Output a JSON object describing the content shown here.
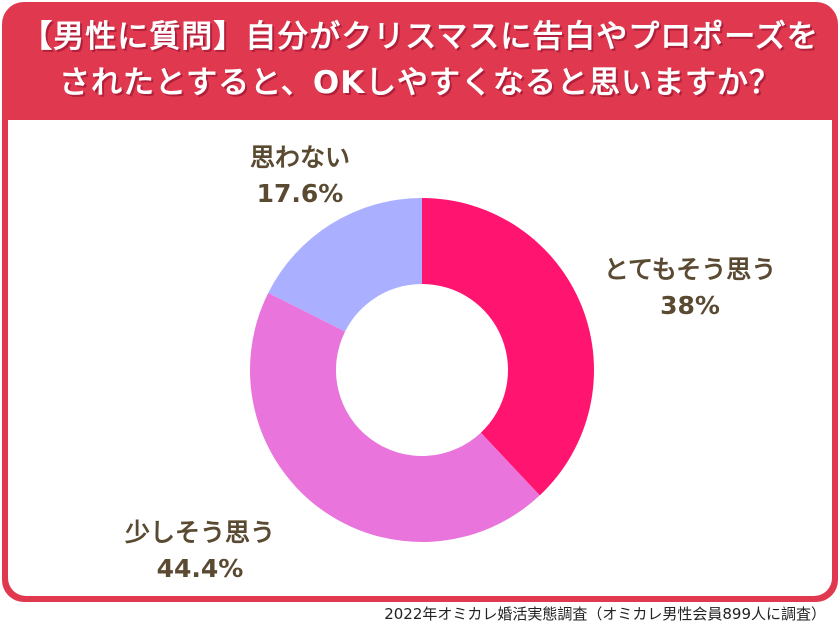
{
  "header": {
    "title_line1": "【男性に質問】自分がクリスマスに告白やプロポーズを",
    "title_line2": "されたとすると、OKしやすくなると思いますか？"
  },
  "footer": {
    "source": "2022年オミカレ婚活実態調査（オミカレ男性会員899人に調査）"
  },
  "colors": {
    "frame": "#e0394f",
    "label_text": "#5a4a32"
  },
  "chart_data": {
    "type": "pie",
    "donut": true,
    "categories": [
      "とてもそう思う",
      "少しそう思う",
      "思わない"
    ],
    "values": [
      38,
      44.4,
      17.6
    ],
    "value_labels": [
      "38%",
      "44.4%",
      "17.6%"
    ],
    "colors": [
      "#ff1470",
      "#e874dc",
      "#aab0ff"
    ],
    "start": "top",
    "direction": "clockwise"
  }
}
